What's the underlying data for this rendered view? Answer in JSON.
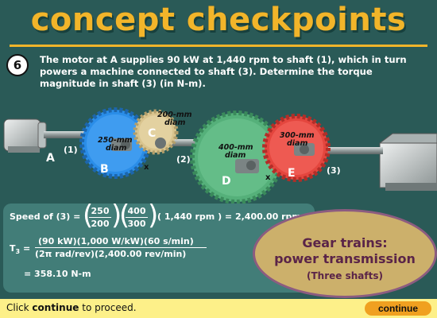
{
  "title": "concept checkpoints",
  "problem": {
    "number": "6",
    "text": "The motor at A supplies 90 kW at 1,440 rpm to shaft (1), which in turn powers a machine connected to shaft (3).  Determine the torque magnitude in shaft (3) (in N-m)."
  },
  "diagram": {
    "labels": {
      "A": "A",
      "B": "B",
      "C": "C",
      "D": "D",
      "E": "E",
      "shaft1": "(1)",
      "shaft2": "(2)",
      "shaft3": "(3)",
      "x1": "x",
      "x2": "x"
    },
    "gear_sizes": {
      "B": [
        "250-mm",
        "diam"
      ],
      "C": [
        "200-mm",
        "diam"
      ],
      "D": [
        "400-mm",
        "diam"
      ],
      "E": [
        "300-mm",
        "diam"
      ]
    },
    "colors": {
      "B": "#2a8de8",
      "C": "#d9c48e",
      "D": "#55b07a",
      "E": "#e4463e",
      "shaft": "#9aa3a3"
    }
  },
  "calculation": {
    "speed_label": "Speed of (3) =",
    "frac1": {
      "num": "250",
      "den": "200"
    },
    "frac2": {
      "num": "400",
      "den": "300"
    },
    "speed_tail": "( 1,440 rpm ) = 2,400.00 rpm",
    "torque_symbol": "T",
    "torque_sub": "3",
    "torque_eq": "=",
    "torque_num": "(90 kW)(1,000 W/kW)(60 s/min)",
    "torque_den": "(2π rad/rev)(2,400.00 rev/min)",
    "result": "= 358.10 N-m"
  },
  "badge": {
    "line1": "Gear trains:",
    "line2": "power transmission",
    "line3": "(Three shafts)"
  },
  "footer": {
    "prefix": "Click",
    "bold": "continue",
    "suffix": "to proceed.",
    "button": "continue"
  }
}
